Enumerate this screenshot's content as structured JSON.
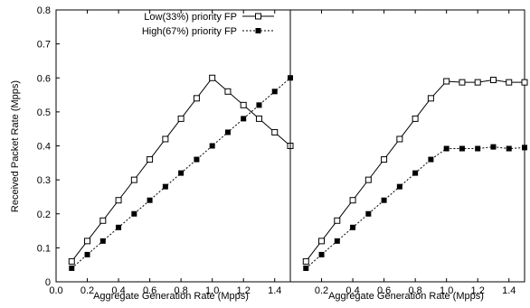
{
  "chart_data": [
    {
      "type": "line",
      "xlabel": "Aggregate Generation Rate (Mpps)",
      "ylabel": "Received Packet Rate (Mpps)",
      "xlim": [
        0.0,
        1.5
      ],
      "ylim": [
        0.0,
        0.8
      ],
      "xticks": [
        "0.0",
        "0.2",
        "0.4",
        "0.6",
        "0.8",
        "1.0",
        "1.2",
        "1.4"
      ],
      "yticks": [
        "0",
        "0.1",
        "0.2",
        "0.3",
        "0.4",
        "0.5",
        "0.6",
        "0.7",
        "0.8"
      ],
      "grid": false,
      "legend": "top-right",
      "x": [
        0.1,
        0.2,
        0.3,
        0.4,
        0.5,
        0.6,
        0.7,
        0.8,
        0.9,
        1.0,
        1.1,
        1.2,
        1.3,
        1.4,
        1.5
      ],
      "series": [
        {
          "name": "Low(33%) priority FP",
          "marker": "open-square",
          "style": "solid",
          "values": [
            0.06,
            0.12,
            0.18,
            0.24,
            0.3,
            0.36,
            0.42,
            0.48,
            0.54,
            0.6,
            0.56,
            0.52,
            0.48,
            0.44,
            0.4
          ]
        },
        {
          "name": "High(67%) priority FP",
          "marker": "filled-square",
          "style": "dashed",
          "values": [
            0.04,
            0.08,
            0.12,
            0.16,
            0.2,
            0.24,
            0.28,
            0.32,
            0.36,
            0.4,
            0.44,
            0.48,
            0.52,
            0.56,
            0.6
          ]
        }
      ]
    },
    {
      "type": "line",
      "xlabel": "Aggregate Generation Rate (Mpps)",
      "xlim": [
        0.0,
        1.5
      ],
      "ylim": [
        0.0,
        0.8
      ],
      "xticks": [
        "0.2",
        "0.4",
        "0.6",
        "0.8",
        "1.0",
        "1.2",
        "1.4"
      ],
      "grid": false,
      "x": [
        0.1,
        0.2,
        0.3,
        0.4,
        0.5,
        0.6,
        0.7,
        0.8,
        0.9,
        1.0,
        1.1,
        1.2,
        1.3,
        1.4,
        1.5
      ],
      "series": [
        {
          "name": "Low(33%) priority FP",
          "marker": "open-square",
          "style": "solid",
          "values": [
            0.06,
            0.12,
            0.18,
            0.24,
            0.3,
            0.36,
            0.42,
            0.48,
            0.54,
            0.59,
            0.587,
            0.587,
            0.594,
            0.587,
            0.587
          ]
        },
        {
          "name": "High(67%) priority FP",
          "marker": "filled-square",
          "style": "dashed",
          "values": [
            0.04,
            0.08,
            0.12,
            0.16,
            0.2,
            0.24,
            0.28,
            0.32,
            0.36,
            0.392,
            0.392,
            0.392,
            0.397,
            0.392,
            0.395
          ]
        }
      ]
    }
  ]
}
